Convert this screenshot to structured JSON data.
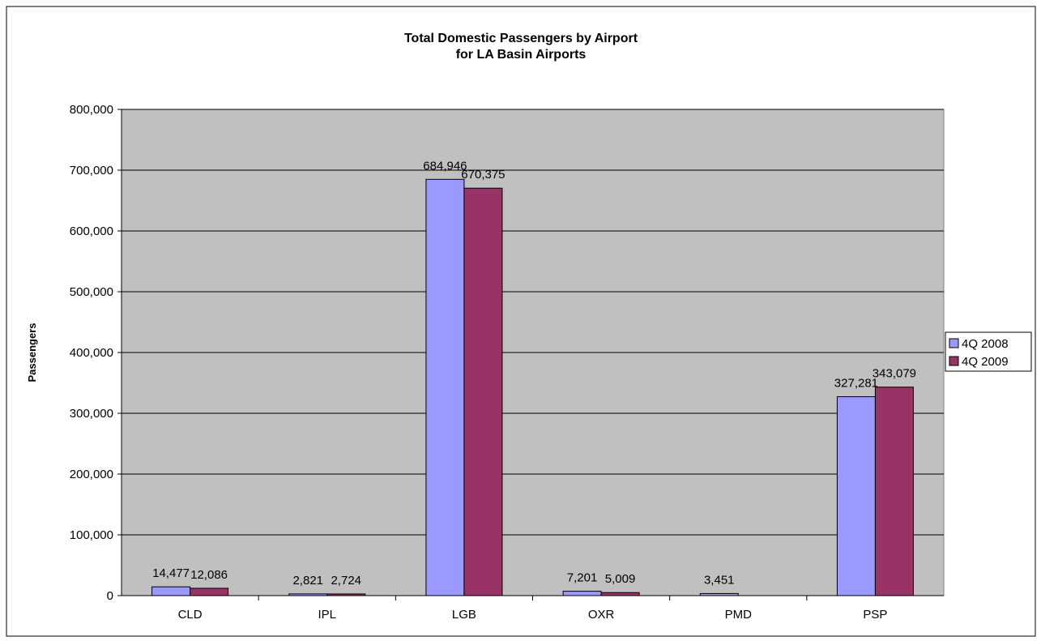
{
  "chart_data": {
    "type": "bar",
    "title": "Total Domestic Passengers by Airport",
    "subtitle": "for LA Basin Airports",
    "xlabel": "",
    "ylabel": "Passengers",
    "ylim": [
      0,
      800000
    ],
    "yticks": [
      0,
      100000,
      200000,
      300000,
      400000,
      500000,
      600000,
      700000,
      800000
    ],
    "ytick_labels": [
      "0",
      "100,000",
      "200,000",
      "300,000",
      "400,000",
      "500,000",
      "600,000",
      "700,000",
      "800,000"
    ],
    "categories": [
      "CLD",
      "IPL",
      "LGB",
      "OXR",
      "PMD",
      "PSP"
    ],
    "series": [
      {
        "name": "4Q 2008",
        "color": "#9999ff",
        "values": [
          14477,
          2821,
          684946,
          7201,
          3451,
          327281
        ],
        "labels": [
          "14,477",
          "2,821",
          "684,946",
          "7,201",
          "3,451",
          "327,281"
        ]
      },
      {
        "name": "4Q 2009",
        "color": "#993366",
        "values": [
          12086,
          2724,
          670375,
          5009,
          0,
          343079
        ],
        "labels": [
          "12,086",
          "2,724",
          "670,375",
          "5,009",
          "",
          "343,079"
        ]
      }
    ],
    "grid": true,
    "legend_position": "right",
    "plot_background": "#c0c0c0"
  }
}
